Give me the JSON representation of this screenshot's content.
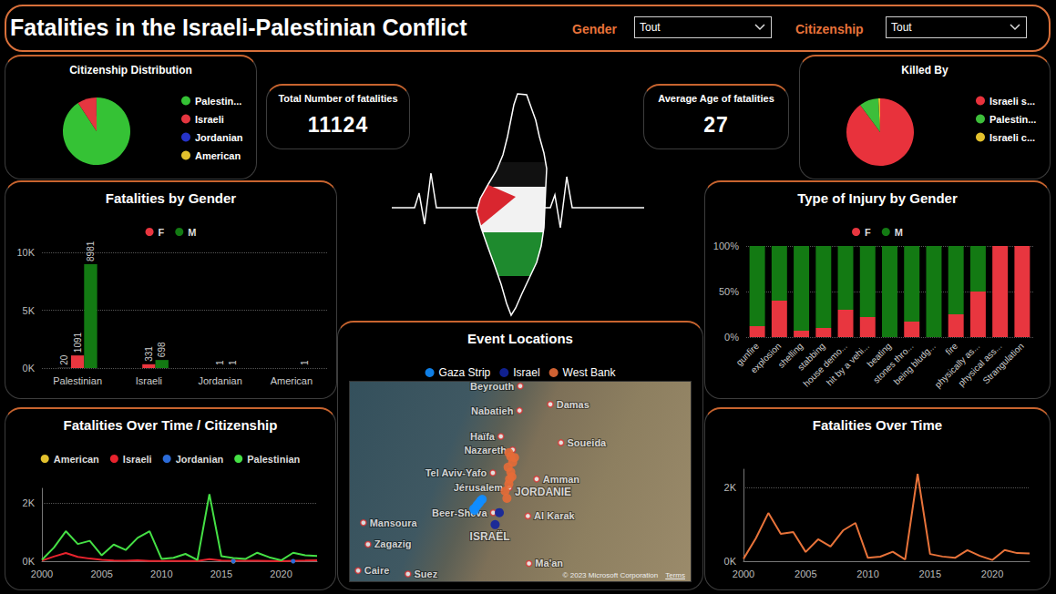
{
  "header": {
    "title": "Fatalities in the Israeli-Palestinian Conflict",
    "filters": [
      {
        "label": "Gender",
        "value": "Tout"
      },
      {
        "label": "Citizenship",
        "value": "Tout"
      }
    ]
  },
  "cards": [
    {
      "title": "Total Number of fatalities",
      "value": 11124
    },
    {
      "title": "Average Age of fatalities",
      "value": 27
    }
  ],
  "chart_data": [
    {
      "type": "pie",
      "title": "Citizenship Distribution",
      "categories": [
        "Palestin...",
        "Israeli",
        "Jordanian",
        "American"
      ],
      "values": [
        10092,
        1029,
        2,
        1
      ],
      "colors": [
        "#35c235",
        "#e53640",
        "#2633c8",
        "#e3c12d"
      ],
      "legend": "right"
    },
    {
      "type": "pie",
      "title": "Killed By",
      "categories": [
        "Israeli s...",
        "Palestin...",
        "Israeli c..."
      ],
      "values": [
        10000,
        1028,
        96
      ],
      "colors": [
        "#e8323c",
        "#3dbe3a",
        "#e3c12d"
      ],
      "legend": "right"
    },
    {
      "type": "bar",
      "title": "Fatalities by Gender",
      "categories": [
        "Palestinian",
        "Israeli",
        "Jordanian",
        "American"
      ],
      "series": [
        {
          "color": "#8a8a8a",
          "values": [
            20,
            null,
            null,
            null
          ]
        },
        {
          "name": "F",
          "color": "#e8363f",
          "values": [
            1091,
            331,
            1,
            null
          ]
        },
        {
          "name": "M",
          "color": "#137a13",
          "values": [
            8981,
            698,
            1,
            1
          ]
        }
      ],
      "ylim": [
        0,
        10000
      ],
      "yticks": [
        {
          "value": 0,
          "label": "0K"
        },
        {
          "value": 5000,
          "label": "5K"
        },
        {
          "value": 10000,
          "label": "10K"
        }
      ],
      "grid": true,
      "legend": "top",
      "data_labels": true
    },
    {
      "type": "bar",
      "title": "Type of Injury by Gender",
      "stacked": true,
      "categories": [
        "gunfire",
        "explosion",
        "shelling",
        "stabbing",
        "house demo...",
        "hit by a vehi...",
        "beating",
        "stones thro...",
        "being bludg...",
        "fire",
        "physically as...",
        "physical ass...",
        "Strangulation"
      ],
      "series": [
        {
          "name": "F",
          "color": "#e8363f",
          "values": [
            12,
            40,
            7,
            10,
            30,
            22,
            0,
            17,
            0,
            25,
            50,
            100,
            100
          ]
        },
        {
          "name": "M",
          "color": "#137a13",
          "values": [
            88,
            60,
            93,
            90,
            70,
            78,
            100,
            83,
            100,
            75,
            50,
            0,
            0
          ]
        }
      ],
      "ylim": [
        0,
        100
      ],
      "yticks": [
        {
          "value": 0,
          "label": "0%"
        },
        {
          "value": 50,
          "label": "50%"
        },
        {
          "value": 100,
          "label": "100%"
        }
      ],
      "grid": true,
      "legend": "top"
    },
    {
      "type": "line",
      "title": "Fatalities Over Time / Citizenship",
      "x": [
        2000,
        2001,
        2002,
        2003,
        2004,
        2005,
        2006,
        2007,
        2008,
        2009,
        2010,
        2011,
        2012,
        2013,
        2014,
        2015,
        2016,
        2017,
        2018,
        2019,
        2020,
        2021,
        2022,
        2023
      ],
      "series": [
        {
          "name": "American",
          "color": "#e3c12d",
          "marker": "circle",
          "values": [
            null,
            null,
            null,
            null,
            null,
            null,
            null,
            null,
            null,
            null,
            null,
            null,
            null,
            null,
            null,
            null,
            1,
            null,
            null,
            null,
            null,
            null,
            null,
            null
          ]
        },
        {
          "name": "Israeli",
          "color": "#e8232d",
          "values": [
            20,
            160,
            280,
            150,
            90,
            50,
            25,
            15,
            35,
            10,
            10,
            10,
            7,
            5,
            70,
            25,
            15,
            15,
            12,
            10,
            3,
            13,
            20,
            30
          ]
        },
        {
          "name": "Jordanian",
          "color": "#2b6bd8",
          "marker": "circle",
          "values": [
            null,
            null,
            null,
            null,
            null,
            null,
            null,
            null,
            null,
            null,
            null,
            null,
            null,
            null,
            null,
            null,
            1,
            null,
            null,
            null,
            null,
            1,
            null,
            null
          ]
        },
        {
          "name": "Palestinian",
          "color": "#45e045",
          "values": [
            45,
            465,
            1030,
            590,
            700,
            200,
            570,
            385,
            800,
            1030,
            80,
            115,
            250,
            40,
            2300,
            170,
            110,
            75,
            290,
            135,
            30,
            290,
            200,
            180
          ]
        }
      ],
      "xlim": [
        2000,
        2023
      ],
      "xticks": [
        2000,
        2005,
        2010,
        2015,
        2020
      ],
      "ylim": [
        0,
        2500
      ],
      "yticks": [
        {
          "value": 0,
          "label": "0K"
        },
        {
          "value": 2000,
          "label": "2K"
        }
      ],
      "grid": true,
      "legend": "top"
    },
    {
      "type": "line",
      "title": "Fatalities Over Time",
      "x": [
        2000,
        2001,
        2002,
        2003,
        2004,
        2005,
        2006,
        2007,
        2008,
        2009,
        2010,
        2011,
        2012,
        2013,
        2014,
        2015,
        2016,
        2017,
        2018,
        2019,
        2020,
        2021,
        2022,
        2023
      ],
      "values": [
        65,
        625,
        1310,
        740,
        790,
        250,
        595,
        400,
        835,
        1040,
        90,
        125,
        257,
        45,
        2370,
        195,
        127,
        90,
        302,
        145,
        33,
        304,
        220,
        210
      ],
      "color": "#e8733a",
      "xlim": [
        2000,
        2023
      ],
      "xticks": [
        2000,
        2005,
        2010,
        2015,
        2020
      ],
      "ylim": [
        0,
        2500
      ],
      "yticks": [
        {
          "value": 0,
          "label": "0K"
        },
        {
          "value": 2000,
          "label": "2K"
        }
      ],
      "grid": true
    }
  ],
  "map": {
    "title": "Event Locations",
    "lonlim": [
      31,
      40
    ],
    "latlim": [
      29.8,
      34
    ],
    "series": [
      {
        "name": "Gaza Strip",
        "color": "#118dff",
        "points": [
          [
            34.3,
            31.3
          ],
          [
            34.35,
            31.38
          ],
          [
            34.42,
            31.45
          ],
          [
            34.46,
            31.5
          ],
          [
            34.5,
            31.53
          ],
          [
            34.38,
            31.42
          ],
          [
            34.28,
            31.33
          ]
        ]
      },
      {
        "name": "Israel",
        "color": "#12239e",
        "points": [
          [
            34.84,
            31.0
          ],
          [
            34.95,
            31.25
          ]
        ]
      },
      {
        "name": "West Bank",
        "color": "#e66c37",
        "points": [
          [
            35.2,
            32.5
          ],
          [
            35.25,
            32.42
          ],
          [
            35.3,
            32.3
          ],
          [
            35.18,
            32.2
          ],
          [
            35.25,
            32.1
          ],
          [
            35.22,
            31.95
          ],
          [
            35.2,
            31.85
          ],
          [
            35.1,
            31.7
          ],
          [
            35.15,
            31.55
          ],
          [
            35.28,
            32.0
          ],
          [
            35.35,
            32.4
          ]
        ]
      }
    ],
    "places": [
      {
        "name": "Beyrouth",
        "lon": 35.5,
        "lat": 33.89,
        "kind": "city"
      },
      {
        "name": "Damas",
        "lon": 36.29,
        "lat": 33.51,
        "kind": "city"
      },
      {
        "name": "Nabatieh",
        "lon": 35.48,
        "lat": 33.38,
        "kind": "city"
      },
      {
        "name": "Haïfa",
        "lon": 34.99,
        "lat": 32.84,
        "kind": "city"
      },
      {
        "name": "Nazareth",
        "lon": 35.3,
        "lat": 32.56,
        "kind": "city"
      },
      {
        "name": "Soueida",
        "lon": 36.57,
        "lat": 32.71,
        "kind": "city"
      },
      {
        "name": "Tel Aviv-Yafo",
        "lon": 34.78,
        "lat": 32.08,
        "kind": "city"
      },
      {
        "name": "Amman",
        "lon": 35.93,
        "lat": 31.95,
        "kind": "city"
      },
      {
        "name": "Jérusalem",
        "lon": 35.21,
        "lat": 31.77,
        "kind": "city"
      },
      {
        "name": "Beer-Sheva",
        "lon": 34.79,
        "lat": 31.25,
        "kind": "city"
      },
      {
        "name": "JORDANIE",
        "lon": 36.1,
        "lat": 31.68,
        "kind": "country"
      },
      {
        "name": "Al Karak",
        "lon": 35.7,
        "lat": 31.18,
        "kind": "city"
      },
      {
        "name": "Mansoura",
        "lon": 31.38,
        "lat": 31.04,
        "kind": "city"
      },
      {
        "name": "Zagazig",
        "lon": 31.5,
        "lat": 30.59,
        "kind": "city"
      },
      {
        "name": "ISRAËL",
        "lon": 34.7,
        "lat": 30.75,
        "kind": "country"
      },
      {
        "name": "Caire",
        "lon": 31.24,
        "lat": 30.04,
        "kind": "city"
      },
      {
        "name": "Suez",
        "lon": 32.55,
        "lat": 29.97,
        "kind": "city"
      },
      {
        "name": "Ma'an",
        "lon": 35.73,
        "lat": 30.19,
        "kind": "city"
      }
    ],
    "credits": [
      "© 2023 Microsoft Corporation",
      "Terms"
    ]
  }
}
